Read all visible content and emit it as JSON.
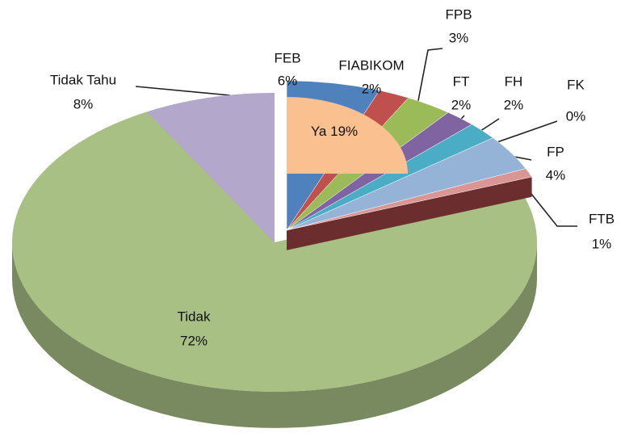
{
  "chart_data": {
    "type": "pie",
    "categories": [
      "Ya",
      "Tidak",
      "Tidak Tahu"
    ],
    "values": [
      19,
      72,
      8
    ],
    "value_labels": [
      "19%",
      "72%",
      "8%"
    ],
    "colors": [
      "#fac090",
      "#a9c085",
      "#b3a7cc"
    ],
    "breakdown": {
      "categories": [
        "FEB",
        "FIABIKOM",
        "FPB",
        "FT",
        "FH",
        "FK",
        "FP",
        "FTB"
      ],
      "values": [
        6,
        2,
        3,
        2,
        2,
        0,
        4,
        1
      ],
      "value_labels": [
        "6%",
        "2%",
        "3%",
        "2%",
        "2%",
        "0%",
        "4%",
        "1%"
      ],
      "colors": [
        "#4f81bd",
        "#c0504d",
        "#9bbb59",
        "#8064a2",
        "#4bacc6",
        "#f79646",
        "#95b3d7",
        "#d99694"
      ]
    }
  }
}
